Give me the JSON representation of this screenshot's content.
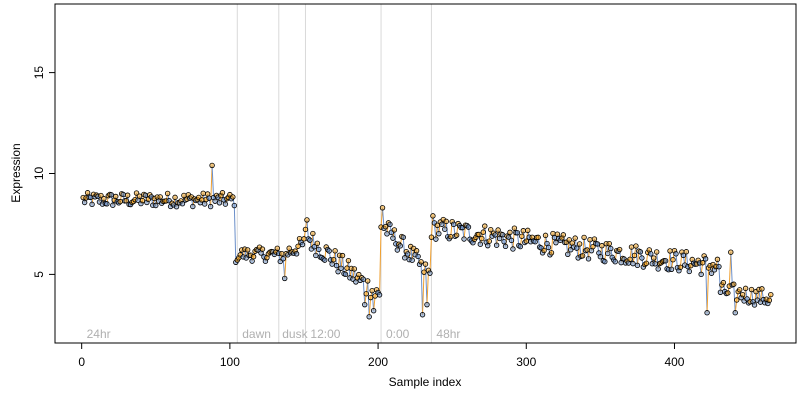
{
  "chart_data": {
    "type": "scatter",
    "title": "",
    "xlabel": "Sample index",
    "ylabel": "Expression",
    "xlim": [
      -18,
      482
    ],
    "ylim": [
      1.6,
      18.4
    ],
    "x_ticks": [
      0,
      100,
      200,
      300,
      400
    ],
    "y_ticks": [
      5,
      10,
      15
    ],
    "grid": false,
    "legend": "none",
    "colors": {
      "point_fill_high": "#f5a623",
      "point_fill_low": "#6f94c8",
      "point_stroke": "#000000",
      "segment_up": "#f0a030",
      "segment_down": "#6b8fc9",
      "divider": "#d9d9d9",
      "annotation": "#b0b0b0"
    },
    "dividers": [
      105,
      133,
      151,
      202,
      236
    ],
    "annotations": [
      {
        "x": 2,
        "label": "24hr"
      },
      {
        "x": 107,
        "label": "dawn"
      },
      {
        "x": 134,
        "label": "dusk"
      },
      {
        "x": 153,
        "label": "12:00"
      },
      {
        "x": 204,
        "label": "0:00"
      },
      {
        "x": 238,
        "label": "48hr"
      }
    ],
    "segments": [
      {
        "x_start": 1,
        "x_end": 104,
        "baseline": 8.7,
        "amp": 0.35,
        "trend": 0.0
      },
      {
        "x_start": 105,
        "x_end": 132,
        "baseline": 6.0,
        "amp": 0.35,
        "trend": 0.0
      },
      {
        "x_start": 133,
        "x_end": 150,
        "baseline": 5.9,
        "amp": 0.4,
        "trend": 0.6
      },
      {
        "x_start": 151,
        "x_end": 201,
        "baseline": 6.9,
        "amp": 0.55,
        "trend": -3.0
      },
      {
        "x_start": 202,
        "x_end": 235,
        "baseline": 7.5,
        "amp": 0.5,
        "trend": -2.5
      },
      {
        "x_start": 236,
        "x_end": 430,
        "baseline": 7.3,
        "amp": 0.55,
        "trend": -1.9
      },
      {
        "x_start": 431,
        "x_end": 465,
        "baseline": 4.2,
        "amp": 0.45,
        "trend": -0.4
      }
    ],
    "outliers": [
      {
        "x": 88,
        "y": 10.4
      },
      {
        "x": 104,
        "y": 5.6
      },
      {
        "x": 137,
        "y": 4.8
      },
      {
        "x": 152,
        "y": 7.7
      },
      {
        "x": 191,
        "y": 3.5
      },
      {
        "x": 194,
        "y": 2.9
      },
      {
        "x": 197,
        "y": 3.2
      },
      {
        "x": 203,
        "y": 8.3
      },
      {
        "x": 230,
        "y": 3.0
      },
      {
        "x": 233,
        "y": 3.5
      },
      {
        "x": 237,
        "y": 7.9
      },
      {
        "x": 422,
        "y": 3.1
      },
      {
        "x": 438,
        "y": 6.1
      },
      {
        "x": 441,
        "y": 3.1
      }
    ]
  }
}
